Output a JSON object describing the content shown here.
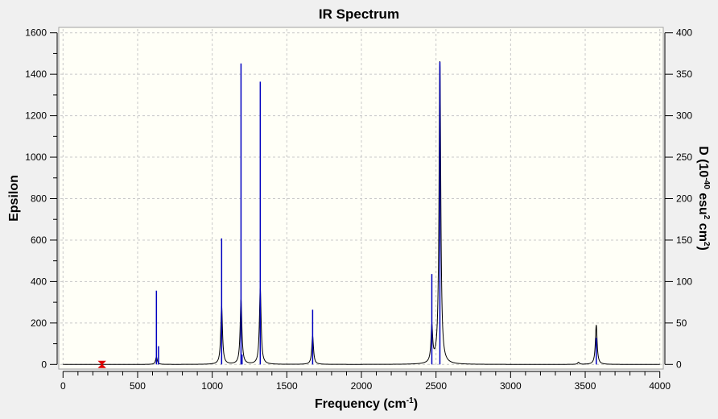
{
  "chart_data": {
    "type": "line",
    "title": "IR Spectrum",
    "xlabel": "Frequency (cm",
    "xlabel_sup": "-1",
    "xlabel_end": ")",
    "ylabel": "Epsilon",
    "y2label": "D (10",
    "y2label_sup1": "-40",
    "y2label_mid": " esu",
    "y2label_sup2": "2",
    "y2label_mid2": " cm",
    "y2label_sup3": "2",
    "y2label_end": ")",
    "xlim": [
      0,
      4000
    ],
    "ylim": [
      0,
      1600
    ],
    "y2lim": [
      0,
      400
    ],
    "x_ticks": [
      0,
      500,
      1000,
      1500,
      2000,
      2500,
      3000,
      3500,
      4000
    ],
    "y_ticks": [
      0,
      200,
      400,
      600,
      800,
      1000,
      1200,
      1400,
      1600
    ],
    "y2_ticks": [
      0,
      50,
      100,
      150,
      200,
      250,
      300,
      350,
      400
    ],
    "grid": true,
    "series": [
      {
        "kind": "spectrum",
        "axis": "left",
        "color": "#000000",
        "bands": [
          {
            "frequency": 626,
            "epsilon": 36
          },
          {
            "frequency": 1063,
            "epsilon": 280
          },
          {
            "frequency": 1193,
            "epsilon": 312
          },
          {
            "frequency": 1322,
            "epsilon": 366
          },
          {
            "frequency": 1673,
            "epsilon": 137
          },
          {
            "frequency": 2472,
            "epsilon": 172
          },
          {
            "frequency": 2526,
            "epsilon": 1460
          },
          {
            "frequency": 3455,
            "epsilon": 10
          },
          {
            "frequency": 3574,
            "epsilon": 190
          }
        ]
      },
      {
        "kind": "sticks",
        "axis": "right",
        "color": "#0000c0",
        "points": [
          {
            "frequency": 626,
            "D": 89
          },
          {
            "frequency": 640,
            "D": 22
          },
          {
            "frequency": 1063,
            "D": 152
          },
          {
            "frequency": 1193,
            "D": 363
          },
          {
            "frequency": 1200,
            "D": 12
          },
          {
            "frequency": 1322,
            "D": 341
          },
          {
            "frequency": 1673,
            "D": 66
          },
          {
            "frequency": 2472,
            "D": 109
          },
          {
            "frequency": 2526,
            "D": 365
          },
          {
            "frequency": 3574,
            "D": 32
          }
        ]
      }
    ],
    "marker": {
      "frequency": 261,
      "epsilon": 0,
      "color": "#e00000"
    }
  }
}
